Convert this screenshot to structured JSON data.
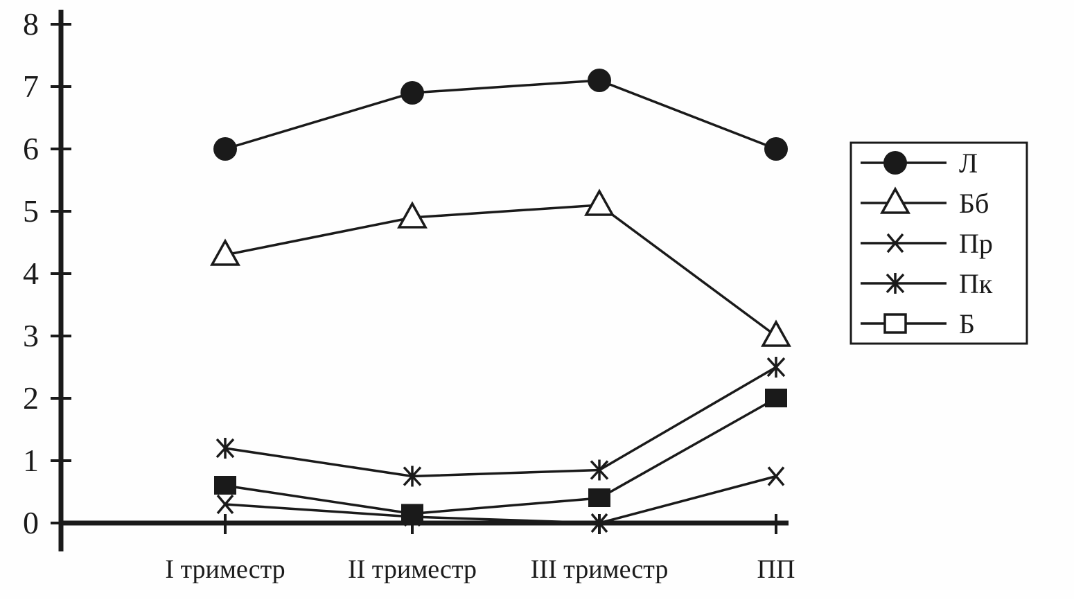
{
  "chart_data": {
    "type": "line",
    "title": "",
    "xlabel": "",
    "ylabel": "",
    "grid": false,
    "ink_color": "#1a1a1a",
    "background_color": "#fefefe",
    "ylim": [
      0,
      8
    ],
    "y_ticks": [
      0,
      1,
      2,
      3,
      4,
      5,
      6,
      7,
      8
    ],
    "categories": [
      "I триместр",
      "II триместр",
      "III триместр",
      "ПП"
    ],
    "series": [
      {
        "name": "Л",
        "marker": "circle",
        "values": [
          6.0,
          6.9,
          7.1,
          6.0
        ]
      },
      {
        "name": "Бб",
        "marker": "triangle",
        "values": [
          4.3,
          4.9,
          5.1,
          3.0
        ]
      },
      {
        "name": "Пр",
        "marker": "x",
        "values": [
          0.3,
          0.1,
          0.0,
          0.75
        ]
      },
      {
        "name": "Пк",
        "marker": "zh",
        "values": [
          1.2,
          0.75,
          0.85,
          2.5
        ]
      },
      {
        "name": "Б",
        "marker": "square",
        "values": [
          0.6,
          0.15,
          0.4,
          2.0
        ]
      }
    ],
    "legend": {
      "position": "right",
      "entries": [
        "Л",
        "Бб",
        "Пр",
        "Пк",
        "Б"
      ]
    }
  }
}
